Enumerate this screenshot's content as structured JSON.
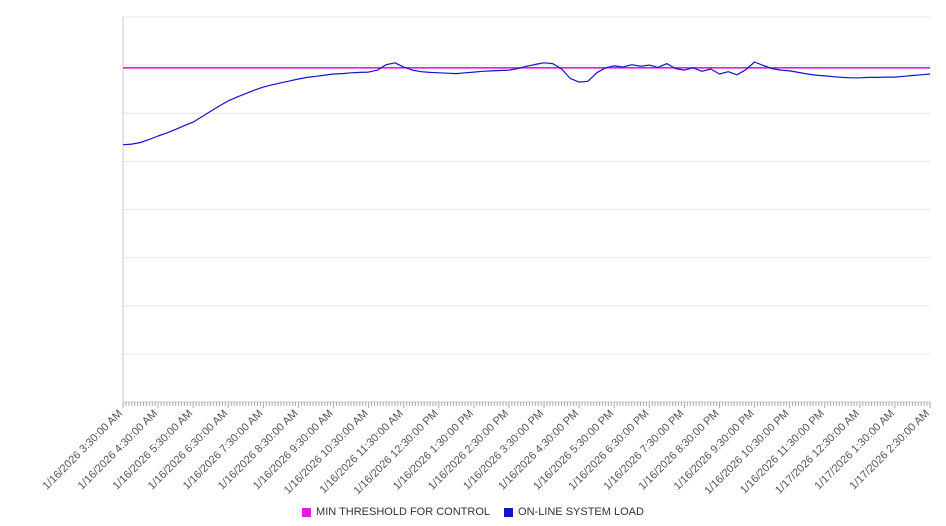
{
  "chart_data": {
    "type": "line",
    "title": "",
    "xlabel": "",
    "ylabel": "",
    "ylim": [
      0,
      100
    ],
    "grid": true,
    "gridline_count": 9,
    "legend_position": "bottom",
    "x_tick_labels": [
      "1/16/2026 3:30:00 AM",
      "1/16/2026 4:30:00 AM",
      "1/16/2026 5:30:00 AM",
      "1/16/2026 6:30:00 AM",
      "1/16/2026 7:30:00 AM",
      "1/16/2026 8:30:00 AM",
      "1/16/2026 9:30:00 AM",
      "1/16/2026 10:30:00 AM",
      "1/16/2026 11:30:00 AM",
      "1/16/2026 12:30:00 PM",
      "1/16/2026 1:30:00 PM",
      "1/16/2026 2:30:00 PM",
      "1/16/2026 3:30:00 PM",
      "1/16/2026 4:30:00 PM",
      "1/16/2026 5:30:00 PM",
      "1/16/2026 6:30:00 PM",
      "1/16/2026 7:30:00 PM",
      "1/16/2026 8:30:00 PM",
      "1/16/2026 9:30:00 PM",
      "1/16/2026 10:30:00 PM",
      "1/16/2026 11:30:00 PM",
      "1/17/2026 12:30:00 AM",
      "1/17/2026 1:30:00 AM",
      "1/17/2026 2:30:00 AM"
    ],
    "series": [
      {
        "name": "MIN THRESHOLD FOR CONTROL",
        "type": "threshold",
        "color": "#e619e6",
        "value": 86.8
      },
      {
        "name": "ON-LINE SYSTEM LOAD",
        "type": "line",
        "color": "#1414c8",
        "points_per_label_interval": 4,
        "values": [
          66.8,
          67.0,
          67.4,
          68.2,
          69.1,
          69.9,
          70.8,
          71.8,
          72.7,
          74.1,
          75.5,
          76.9,
          78.2,
          79.2,
          80.1,
          81.0,
          81.8,
          82.4,
          82.9,
          83.4,
          83.9,
          84.3,
          84.6,
          84.9,
          85.2,
          85.3,
          85.5,
          85.6,
          85.7,
          86.2,
          87.6,
          88.1,
          87.0,
          86.2,
          85.8,
          85.6,
          85.5,
          85.4,
          85.3,
          85.5,
          85.7,
          85.9,
          86.0,
          86.1,
          86.2,
          86.6,
          87.2,
          87.7,
          88.1,
          87.9,
          86.5,
          84.0,
          83.1,
          83.3,
          85.5,
          86.8,
          87.3,
          87.0,
          87.6,
          87.2,
          87.5,
          86.9,
          87.9,
          86.6,
          86.2,
          86.8,
          85.9,
          86.5,
          85.2,
          85.8,
          85.0,
          86.3,
          88.3,
          87.4,
          86.6,
          86.2,
          86.0,
          85.6,
          85.2,
          84.9,
          84.7,
          84.5,
          84.3,
          84.2,
          84.2,
          84.3,
          84.3,
          84.4,
          84.4,
          84.6,
          84.8,
          85.0,
          85.2
        ]
      }
    ],
    "colors": {
      "gridline": "#e6e6e6",
      "axis": "#c8c8c8",
      "tick": "#aaaaaa",
      "tick_label": "#555555",
      "legend_text": "#333333",
      "background": "#ffffff"
    }
  }
}
